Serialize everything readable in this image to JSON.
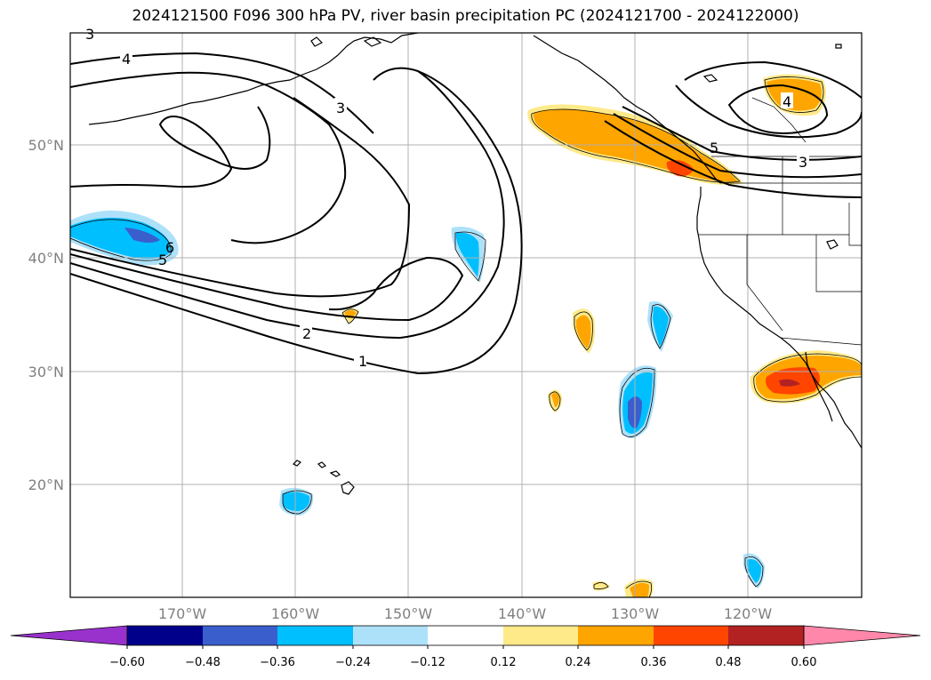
{
  "title": "2024121500 F096 300 hPa PV, river basin precipitation PC (2024121700 - 2024122000)",
  "lat_labels": [
    "50°N",
    "40°N",
    "30°N",
    "20°N"
  ],
  "lon_labels": [
    "170°W",
    "160°W",
    "150°W",
    "140°W",
    "130°W",
    "120°W"
  ],
  "pv_contour_labels": [
    "1",
    "2",
    "3",
    "3",
    "4",
    "4",
    "5",
    "6",
    "3",
    "5"
  ],
  "colorbar": {
    "tick_labels": [
      "−0.60",
      "−0.48",
      "−0.36",
      "−0.24",
      "−0.12",
      "0.12",
      "0.24",
      "0.36",
      "0.48",
      "0.60"
    ],
    "colors": [
      "#9932cc",
      "#00008b",
      "#3a5fcd",
      "#00bfff",
      "#ade1fa",
      "#ffffff",
      "#ffea8a",
      "#ffa500",
      "#ff4500",
      "#b22222",
      "#ff88aa"
    ]
  },
  "colors": {
    "coastline": "#000000",
    "grid": "#b0b0b0",
    "tick_label": "#808080"
  }
}
